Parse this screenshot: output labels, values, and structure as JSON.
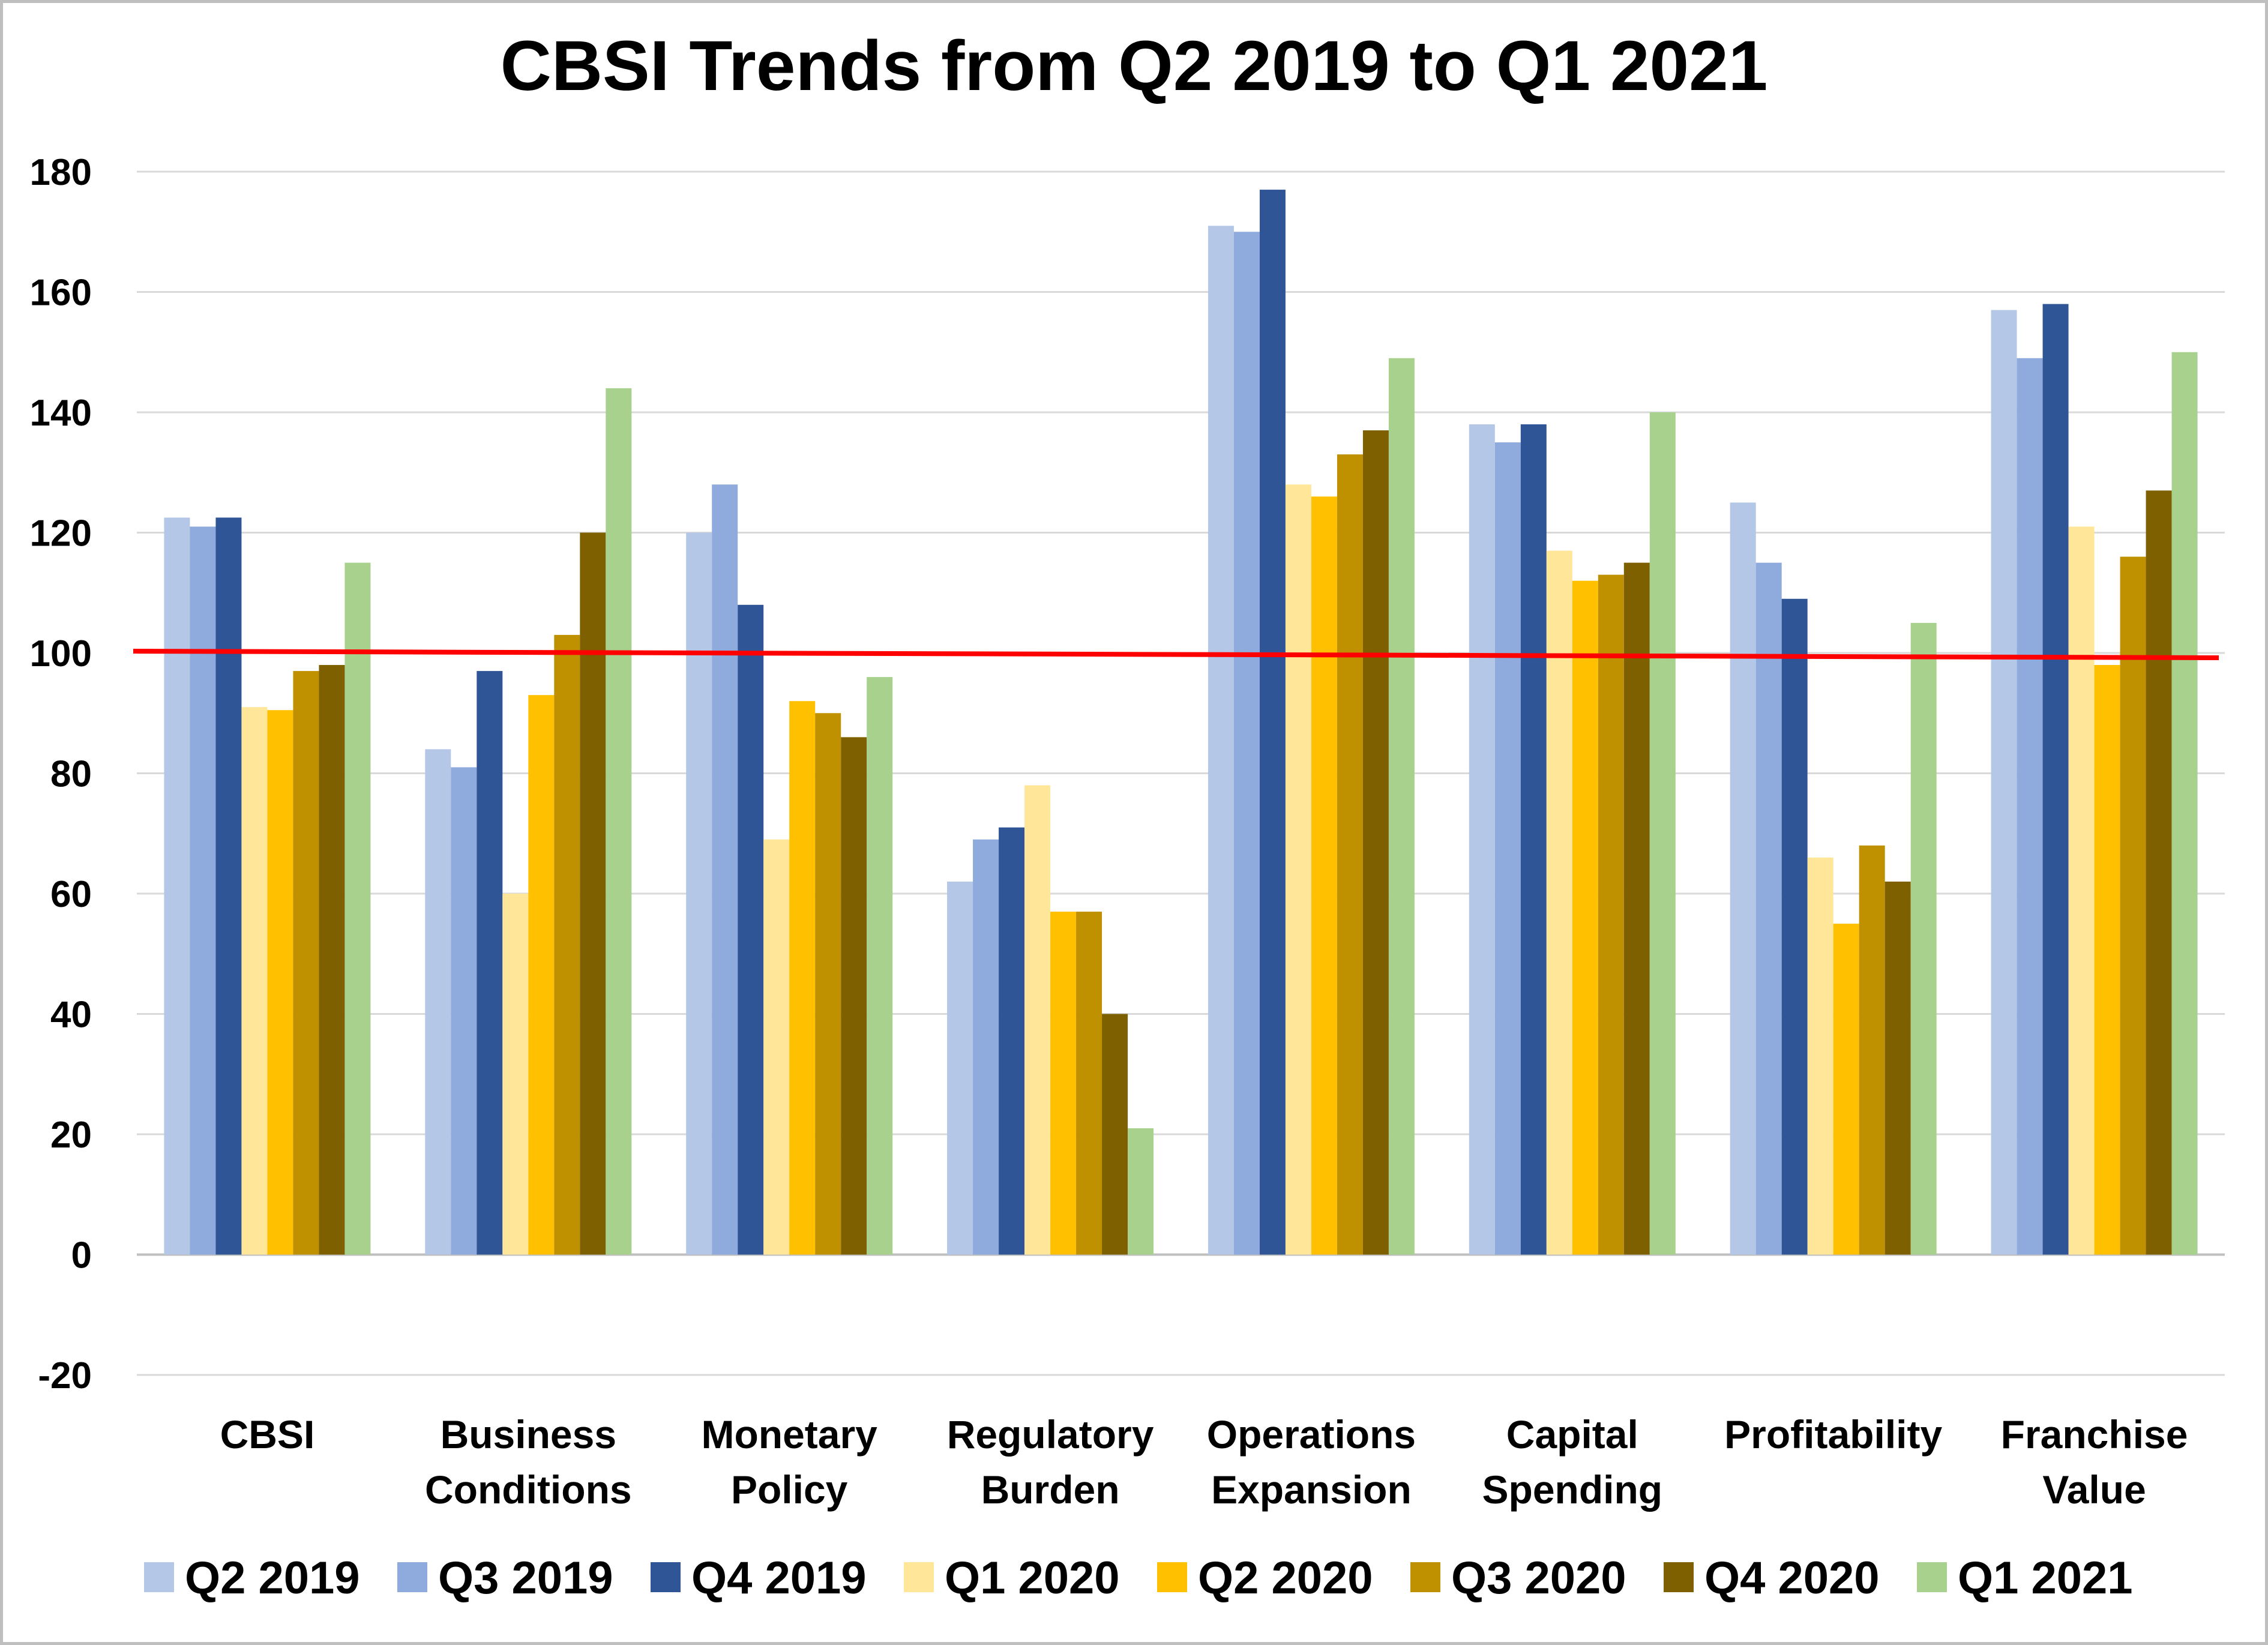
{
  "chart_data": {
    "type": "bar",
    "title": "CBSI Trends from Q2 2019 to Q1 2021",
    "xlabel": "",
    "ylabel": "",
    "ylim": [
      -20,
      180
    ],
    "yticks": [
      180,
      160,
      140,
      120,
      100,
      80,
      60,
      40,
      20,
      0,
      -20
    ],
    "grid": true,
    "legend_position": "bottom",
    "reference_line": {
      "value": 100,
      "color": "#ff0000"
    },
    "categories": [
      [
        "CBSI"
      ],
      [
        "Business",
        "Conditions"
      ],
      [
        "Monetary",
        "Policy"
      ],
      [
        "Regulatory",
        "Burden"
      ],
      [
        "Operations",
        "Expansion"
      ],
      [
        "Capital",
        "Spending"
      ],
      [
        "Profitability"
      ],
      [
        "Franchise",
        "Value"
      ]
    ],
    "series": [
      {
        "name": "Q2 2019",
        "color": "#b4c7e7",
        "values": [
          122.5,
          84,
          120,
          62,
          171,
          138,
          125,
          157
        ]
      },
      {
        "name": "Q3 2019",
        "color": "#8faadc",
        "values": [
          121,
          81,
          128,
          69,
          170,
          135,
          115,
          149
        ]
      },
      {
        "name": "Q4 2019",
        "color": "#2f5597",
        "values": [
          122.5,
          97,
          108,
          71,
          177,
          138,
          109,
          158
        ]
      },
      {
        "name": "Q1 2020",
        "color": "#ffe699",
        "values": [
          91,
          60,
          69,
          78,
          128,
          117,
          66,
          121
        ]
      },
      {
        "name": "Q2 2020",
        "color": "#ffc000",
        "values": [
          90.5,
          93,
          92,
          57,
          126,
          112,
          55,
          98
        ]
      },
      {
        "name": "Q3 2020",
        "color": "#bf9000",
        "values": [
          97,
          103,
          90,
          57,
          133,
          113,
          68,
          116
        ]
      },
      {
        "name": "Q4 2020",
        "color": "#7f6000",
        "values": [
          98,
          120,
          86,
          40,
          137,
          115,
          62,
          127
        ]
      },
      {
        "name": "Q1 2021",
        "color": "#a9d18e",
        "values": [
          115,
          144,
          96,
          21,
          149,
          140,
          105,
          150
        ]
      }
    ]
  }
}
